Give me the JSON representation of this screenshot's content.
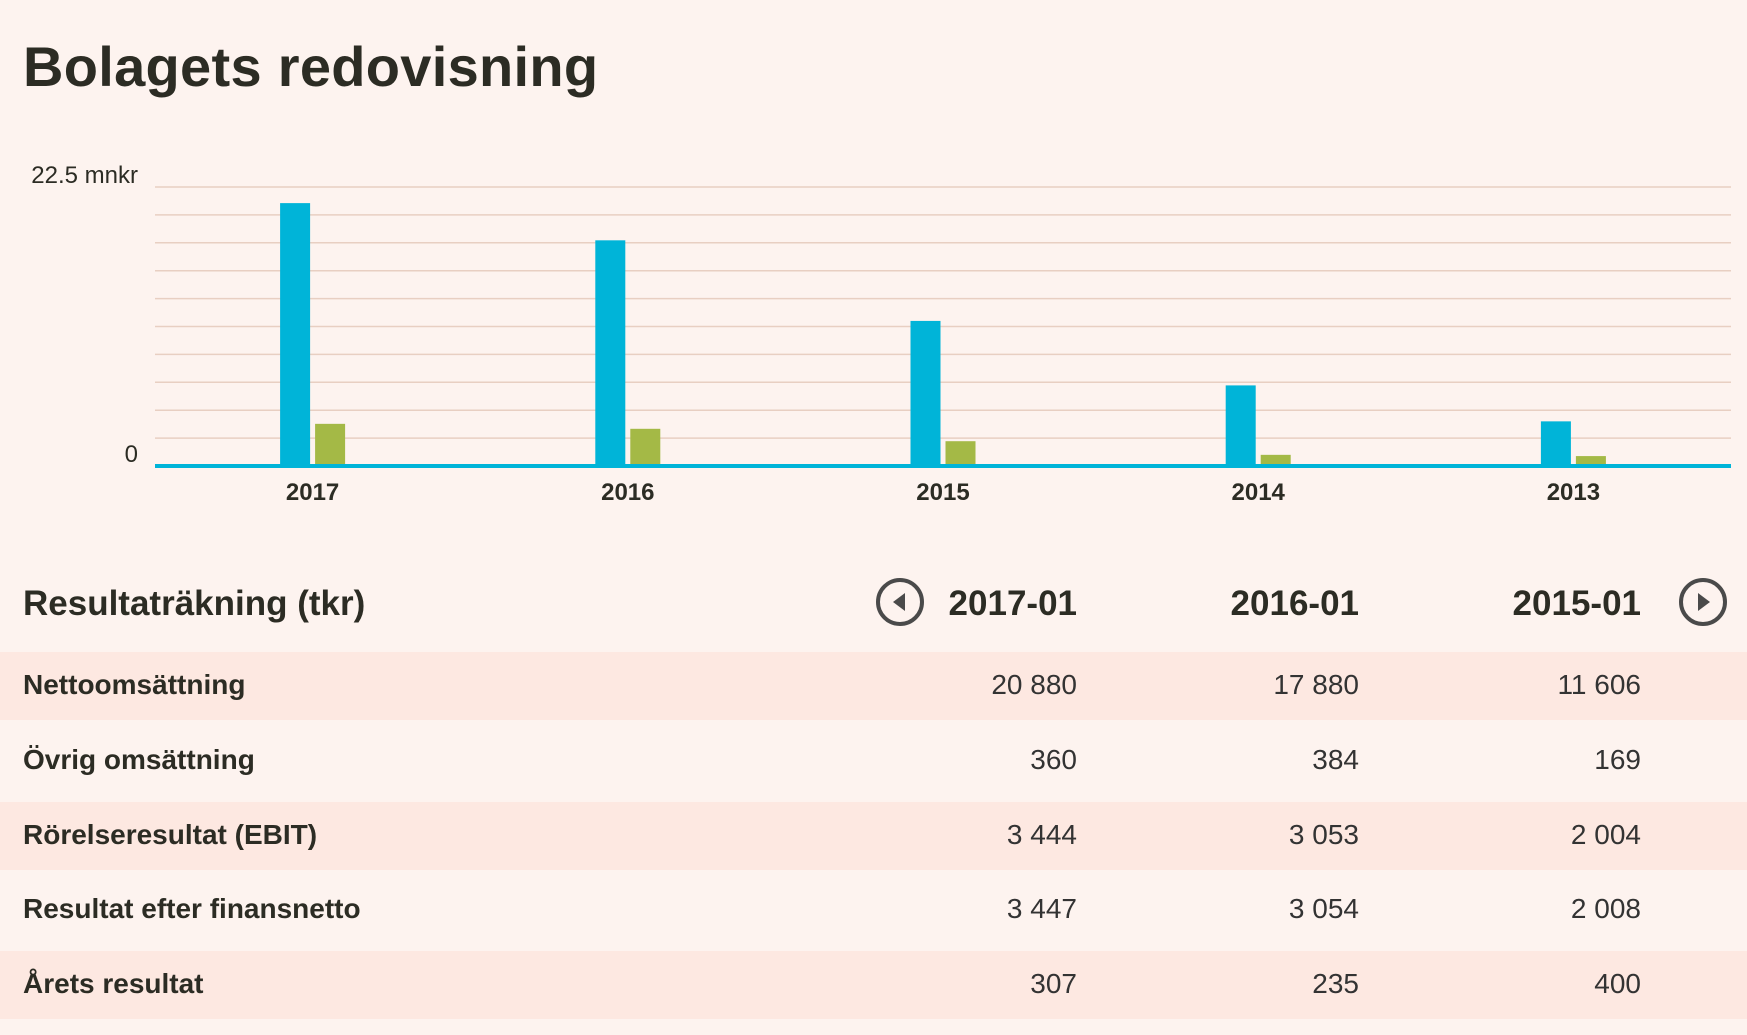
{
  "title": "Bolagets redovisning",
  "chart_data": {
    "type": "bar",
    "ytop_label": "22.5 mnkr",
    "ybottom_label": "0",
    "ylim": [
      0,
      22.5
    ],
    "grid": true,
    "categories": [
      "2017",
      "2016",
      "2015",
      "2014",
      "2013"
    ],
    "series": [
      {
        "color": "#00b4d8",
        "values": [
          21.2,
          18.2,
          11.7,
          6.5,
          3.6
        ]
      },
      {
        "color": "#a4b946",
        "values": [
          3.4,
          3.0,
          2.0,
          0.9,
          0.8
        ]
      }
    ]
  },
  "table": {
    "title": "Resultaträkning (tkr)",
    "columns": [
      "2017-01",
      "2016-01",
      "2015-01"
    ],
    "rows": [
      {
        "label": "Nettoomsättning",
        "values": [
          "20 880",
          "17 880",
          "11 606"
        ]
      },
      {
        "label": "Övrig omsättning",
        "values": [
          "360",
          "384",
          "169"
        ]
      },
      {
        "label": "Rörelseresultat (EBIT)",
        "values": [
          "3 444",
          "3 053",
          "2 004"
        ]
      },
      {
        "label": "Resultat efter finansnetto",
        "values": [
          "3 447",
          "3 054",
          "2 008"
        ]
      },
      {
        "label": "Årets resultat",
        "values": [
          "307",
          "235",
          "400"
        ]
      }
    ]
  },
  "icons": {
    "prev": "chevron-left-circle-icon",
    "next": "chevron-right-circle-icon"
  }
}
